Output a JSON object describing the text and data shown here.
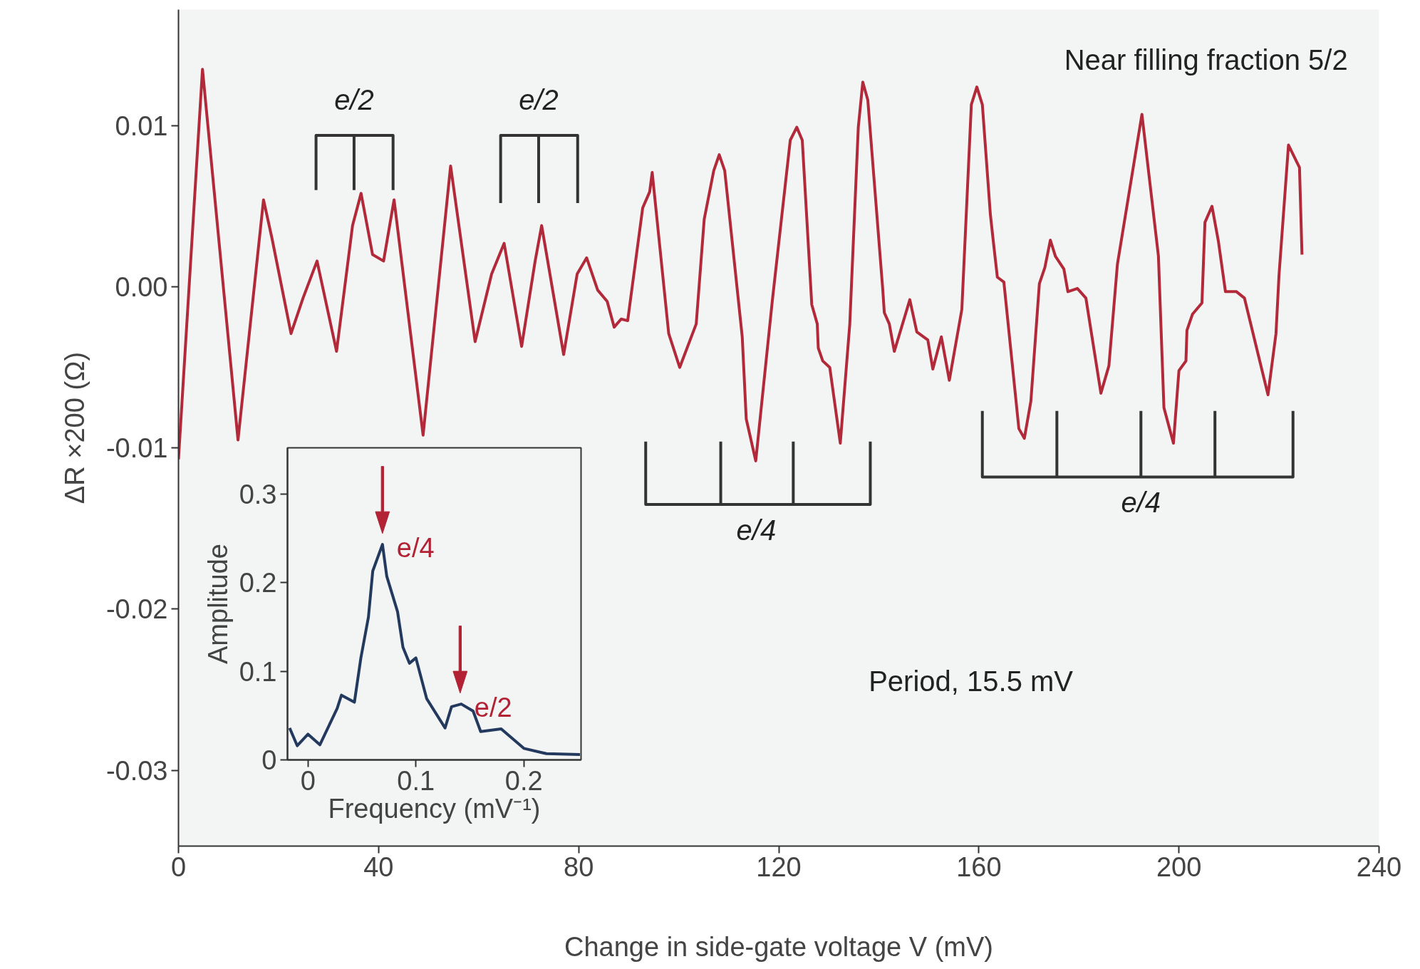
{
  "chart_data": [
    {
      "type": "line",
      "xlabel": "Change in side-gate voltage V (mV)",
      "ylabel": "ΔR ×200 (Ω)",
      "xlim": [
        0,
        240
      ],
      "ylim": [
        -0.0347,
        0.0172
      ],
      "xticks": [
        0,
        40,
        80,
        120,
        160,
        200,
        240
      ],
      "yticks": [
        {
          "value": -0.03,
          "label": "-0.03"
        },
        {
          "value": -0.02,
          "label": "-0.02"
        },
        {
          "value": -0.01,
          "label": "-0.01"
        },
        {
          "value": 0,
          "label": "0.00"
        },
        {
          "value": 0.01,
          "label": "0.01"
        }
      ],
      "grid": false,
      "marker": "none",
      "line_style": "solid",
      "annotations": [
        "Near filling fraction 5/2",
        "Period, 15.5 mV",
        {
          "text": "e/2",
          "x": 35.1,
          "y": 0.0094
        },
        {
          "text": "e/2",
          "x": 72.0,
          "y": 0.0094
        },
        {
          "text": "e/4",
          "x": 115.5,
          "y": -0.0135
        },
        {
          "text": "e/4",
          "x": 192.4,
          "y": -0.0118
        }
      ],
      "series": [
        {
          "color": "#b22a3a",
          "x": [
            0,
            4.8,
            11.9,
            17.0,
            18.7,
            22.5,
            24.9,
            27.7,
            31.6,
            34.8,
            36.5,
            38.8,
            41.0,
            43.1,
            48.9,
            54.4,
            59.3,
            62.6,
            65.1,
            68.6,
            71.3,
            72.6,
            77.0,
            79.7,
            81.6,
            83.8,
            85.7,
            87.1,
            88.5,
            89.8,
            92.8,
            94.2,
            94.7,
            98.0,
            100.2,
            103.5,
            105.1,
            107.0,
            108.1,
            109.2,
            112.7,
            113.5,
            115.4,
            118.7,
            122.3,
            123.6,
            124.7,
            126.6,
            127.7,
            127.9,
            128.8,
            130.2,
            132.3,
            134.2,
            135.9,
            136.8,
            137.8,
            140.8,
            141.1,
            142.1,
            143.1,
            146.2,
            147.6,
            149.8,
            150.8,
            152.5,
            154.1,
            156.6,
            158.5,
            159.6,
            160.7,
            162.3,
            162.9,
            163.7,
            165.0,
            168.0,
            169.1,
            170.4,
            172.1,
            173.2,
            174.3,
            175.3,
            177.0,
            177.8,
            179.7,
            181.4,
            184.4,
            186.0,
            187.7,
            192.6,
            195.9,
            197.0,
            198.9,
            200.0,
            201.4,
            201.6,
            202.7,
            204.6,
            205.2,
            206.6,
            207.9,
            209.3,
            211.5,
            213.1,
            217.8,
            219.4,
            220.0,
            221.9,
            224.1,
            224.6
          ],
          "values": [
            -0.0107,
            0.0135,
            -0.0095,
            0.0054,
            0.003,
            -0.0029,
            -0.0007,
            0.0016,
            -0.004,
            0.0038,
            0.0058,
            0.002,
            0.0016,
            0.0054,
            -0.0092,
            0.0075,
            -0.0034,
            0.0008,
            0.0027,
            -0.0037,
            0.0016,
            0.0038,
            -0.0042,
            0.0008,
            0.0018,
            -0.0002,
            -0.0009,
            -0.0025,
            -0.002,
            -0.0021,
            0.0049,
            0.0059,
            0.0071,
            -0.0029,
            -0.005,
            -0.0023,
            0.0042,
            0.0072,
            0.0082,
            0.0072,
            -0.0031,
            -0.0082,
            -0.0108,
            -0.0009,
            0.0091,
            0.0099,
            0.0091,
            -0.0011,
            -0.0023,
            -0.0038,
            -0.0046,
            -0.005,
            -0.0097,
            -0.0023,
            0.0099,
            0.0127,
            0.0116,
            -0.0002,
            -0.0016,
            -0.0023,
            -0.004,
            -0.0008,
            -0.0028,
            -0.0033,
            -0.0051,
            -0.0031,
            -0.0058,
            -0.0014,
            0.0113,
            0.0124,
            0.0113,
            0.0045,
            0.0028,
            0.0006,
            0.0003,
            -0.0088,
            -0.0094,
            -0.0071,
            0.0002,
            0.0012,
            0.0029,
            0.0019,
            0.0011,
            -0.0003,
            -0.0001,
            -0.0007,
            -0.0066,
            -0.0049,
            0.0014,
            0.0107,
            0.0019,
            -0.0075,
            -0.0097,
            -0.0052,
            -0.0046,
            -0.0027,
            -0.0017,
            -0.001,
            0.004,
            0.005,
            0.0028,
            -0.0003,
            -0.0003,
            -0.0007,
            -0.0067,
            -0.0029,
            0.0007,
            0.0088,
            0.0074,
            0.002
          ]
        },
        {
          "color": "#333333",
          "x": [
            27.5,
            27.5,
            42.9,
            42.9,
            null,
            35.1,
            35.1
          ],
          "values": [
            0.006,
            0.0094,
            0.0094,
            0.006,
            null,
            0.0094,
            0.006
          ]
        },
        {
          "color": "#333333",
          "x": [
            64.4,
            64.4,
            79.8,
            79.8,
            null,
            72.0,
            72.0
          ],
          "values": [
            0.0052,
            0.0094,
            0.0094,
            0.0052,
            null,
            0.0094,
            0.0052
          ]
        },
        {
          "color": "#333333",
          "x": [
            93.4,
            93.4,
            138.3,
            138.3,
            null,
            108.4,
            108.4,
            null,
            122.9,
            122.9
          ],
          "values": [
            -0.0096,
            -0.0135,
            -0.0135,
            -0.0096,
            null,
            -0.0096,
            -0.0135,
            null,
            -0.0096,
            -0.0135
          ]
        },
        {
          "color": "#333333",
          "x": [
            160.7,
            160.7,
            222.8,
            222.8,
            null,
            175.6,
            175.6,
            null,
            192.4,
            192.4,
            null,
            207.2,
            207.2
          ],
          "values": [
            -0.0077,
            -0.0118,
            -0.0118,
            -0.0077,
            null,
            -0.0077,
            -0.0118,
            null,
            -0.0077,
            -0.0118,
            null,
            -0.0077,
            -0.0118
          ]
        }
      ]
    },
    {
      "type": "line",
      "xlabel": "Frequency (mV⁻¹)",
      "ylabel": "Amplitude",
      "xlim": [
        -0.019,
        0.253
      ],
      "ylim": [
        0,
        0.352
      ],
      "xticks": [
        {
          "value": 0,
          "label": "0"
        },
        0.1,
        0.2
      ],
      "yticks": [
        {
          "value": 0,
          "label": "0"
        },
        0.1,
        0.2,
        0.3
      ],
      "grid": false,
      "marker": "none",
      "line_style": "solid",
      "annotations": [
        {
          "text": "e/4",
          "x": 0.069,
          "y": 0.243
        },
        {
          "text": "e/2",
          "x": 0.141,
          "y": 0.063
        }
      ],
      "series": [
        {
          "color": "#233a5e",
          "x": [
            -0.017,
            -0.01,
            0.0,
            0.011,
            0.02,
            0.027,
            0.031,
            0.043,
            0.049,
            0.056,
            0.06,
            0.069,
            0.073,
            0.083,
            0.088,
            0.094,
            0.1,
            0.11,
            0.127,
            0.133,
            0.142,
            0.153,
            0.16,
            0.179,
            0.2,
            0.221,
            0.252
          ],
          "values": [
            0.036,
            0.016,
            0.029,
            0.017,
            0.04,
            0.058,
            0.073,
            0.065,
            0.115,
            0.161,
            0.213,
            0.243,
            0.207,
            0.167,
            0.127,
            0.109,
            0.115,
            0.069,
            0.036,
            0.06,
            0.063,
            0.055,
            0.032,
            0.035,
            0.013,
            0.007,
            0.006
          ]
        }
      ]
    }
  ]
}
